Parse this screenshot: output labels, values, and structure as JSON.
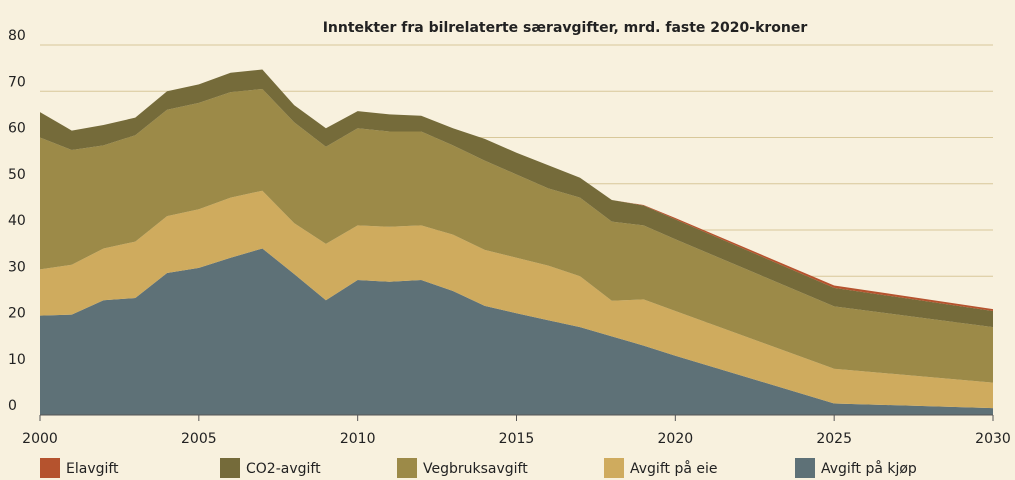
{
  "chart_data": {
    "type": "stacked_area",
    "title": "Inntekter fra bilrelaterte særavgifter, mrd. faste 2020-kroner",
    "x": [
      2000,
      2001,
      2002,
      2003,
      2004,
      2005,
      2006,
      2007,
      2008,
      2009,
      2010,
      2011,
      2012,
      2013,
      2014,
      2015,
      2016,
      2017,
      2018,
      2019,
      2020,
      2025,
      2030
    ],
    "series": [
      {
        "name": "Elavgift",
        "color": "#b5532e",
        "values": [
          0,
          0,
          0,
          0,
          0,
          0,
          0,
          0,
          0,
          0,
          0,
          0,
          0,
          0,
          0,
          0,
          0,
          0,
          0,
          0.1,
          0.3,
          0.5,
          0.4
        ]
      },
      {
        "name": "CO2-avgift",
        "color": "#756b3a",
        "values": [
          5.5,
          4.2,
          4.4,
          3.8,
          4,
          4,
          4.2,
          4.2,
          3.7,
          4,
          3.7,
          3.7,
          3.4,
          3.7,
          4.7,
          4.7,
          5,
          4.3,
          4.7,
          4.3,
          4.3,
          4,
          3.5
        ]
      },
      {
        "name": "Vegbruksavgift",
        "color": "#9c8a48",
        "values": [
          28.5,
          24.8,
          22.3,
          23,
          23,
          23,
          22.8,
          22,
          21.8,
          21,
          21,
          20.6,
          20.3,
          19.3,
          19.3,
          18,
          16.7,
          17,
          17.1,
          16,
          15.5,
          13.5,
          12
        ]
      },
      {
        "name": "Avgift på eie",
        "color": "#cfab5e",
        "values": [
          10,
          10.8,
          11.2,
          12.2,
          12.3,
          12.7,
          13,
          12.5,
          11,
          12.2,
          11.8,
          11.9,
          11.8,
          12.2,
          12.1,
          12,
          11.8,
          11,
          7.7,
          10,
          9.7,
          7.5,
          5.5
        ]
      },
      {
        "name": "Avgift på kjøp",
        "color": "#5e7177",
        "values": [
          21.5,
          21.7,
          24.8,
          25.3,
          30.7,
          31.8,
          34,
          36,
          30.5,
          24.8,
          29.2,
          28.8,
          29.2,
          26.8,
          23.6,
          22,
          20.5,
          19,
          17,
          15,
          12.8,
          2.5,
          1.5
        ]
      }
    ],
    "xlim": [
      2000,
      2030
    ],
    "xticks": [
      2000,
      2005,
      2010,
      2015,
      2020,
      2025,
      2030
    ],
    "ylim": [
      0,
      80
    ],
    "yticks": [
      0,
      10,
      20,
      30,
      40,
      50,
      60,
      70,
      80
    ],
    "grid": true,
    "legend": "bottom"
  }
}
